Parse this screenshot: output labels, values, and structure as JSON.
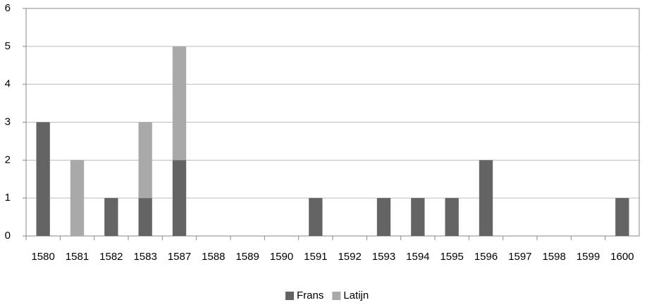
{
  "chart_data": {
    "type": "bar",
    "stacked": true,
    "categories": [
      "1580",
      "1581",
      "1582",
      "1583",
      "1587",
      "1588",
      "1589",
      "1590",
      "1591",
      "1592",
      "1593",
      "1594",
      "1595",
      "1596",
      "1597",
      "1598",
      "1599",
      "1600"
    ],
    "series": [
      {
        "name": "Frans",
        "color": "#646464",
        "values": [
          3,
          0,
          1,
          1,
          2,
          0,
          0,
          0,
          1,
          0,
          1,
          1,
          1,
          2,
          0,
          0,
          0,
          1
        ]
      },
      {
        "name": "Latijn",
        "color": "#a9a9a9",
        "values": [
          0,
          2,
          0,
          2,
          3,
          0,
          0,
          0,
          0,
          0,
          0,
          0,
          0,
          0,
          0,
          0,
          0,
          0
        ]
      }
    ],
    "ylim": [
      0,
      6
    ],
    "yticks": [
      0,
      1,
      2,
      3,
      4,
      5,
      6
    ],
    "grid": true,
    "legend": "bottom"
  }
}
